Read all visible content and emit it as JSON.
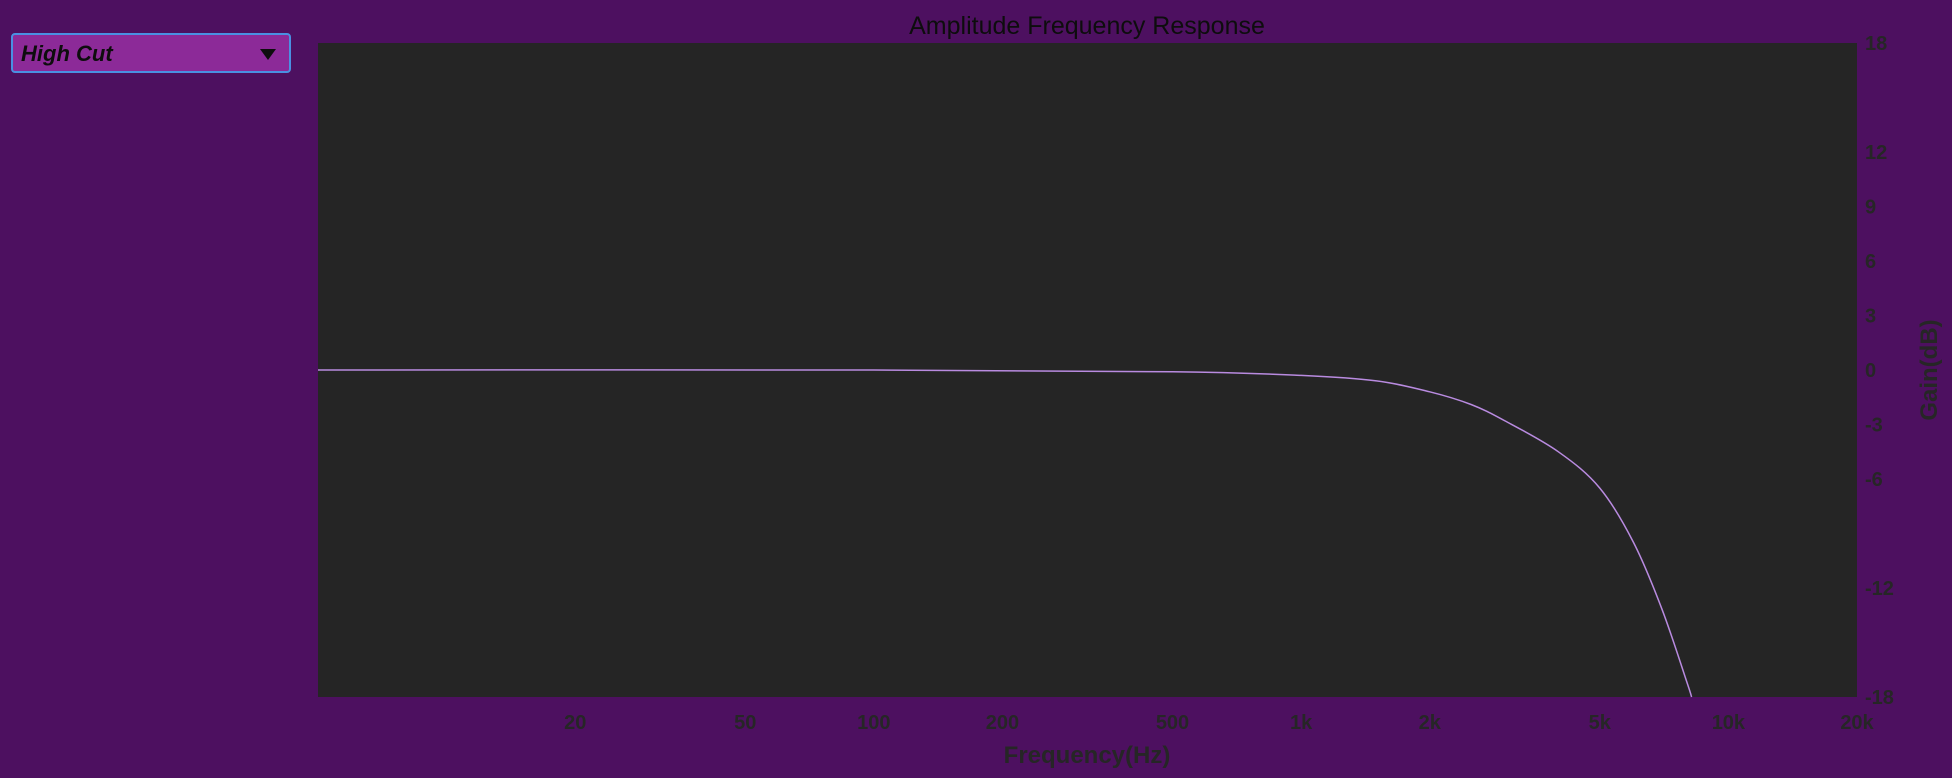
{
  "filter_type_select": {
    "selected_label": "High Cut"
  },
  "colors": {
    "page_background": "#4d1060",
    "plot_background": "#252525",
    "curve": "#b98be0",
    "dropdown_fill": "#8c2a98",
    "dropdown_border": "#4a90e2"
  },
  "chart_data": {
    "type": "line",
    "title": "Amplitude Frequency Response",
    "xlabel": "Frequency(Hz)",
    "ylabel": "Gain(dB)",
    "x_scale": "log",
    "xlim": [
      5,
      20000
    ],
    "ylim": [
      -18,
      18
    ],
    "x_ticks": [
      {
        "value": 20,
        "label": "20"
      },
      {
        "value": 50,
        "label": "50"
      },
      {
        "value": 100,
        "label": "100"
      },
      {
        "value": 200,
        "label": "200"
      },
      {
        "value": 500,
        "label": "500"
      },
      {
        "value": 1000,
        "label": "1k"
      },
      {
        "value": 2000,
        "label": "2k"
      },
      {
        "value": 5000,
        "label": "5k"
      },
      {
        "value": 10000,
        "label": "10k"
      },
      {
        "value": 20000,
        "label": "20k"
      }
    ],
    "y_ticks": [
      {
        "value": 18,
        "label": "18"
      },
      {
        "value": 12,
        "label": "12"
      },
      {
        "value": 9,
        "label": "9"
      },
      {
        "value": 6,
        "label": "6"
      },
      {
        "value": 3,
        "label": "3"
      },
      {
        "value": 0,
        "label": "0"
      },
      {
        "value": -3,
        "label": "-3"
      },
      {
        "value": -6,
        "label": "-6"
      },
      {
        "value": -12,
        "label": "-12"
      },
      {
        "value": -18,
        "label": "-18"
      }
    ],
    "grid": false,
    "series": [
      {
        "points": [
          {
            "x": 5,
            "y": 0
          },
          {
            "x": 100,
            "y": 0
          },
          {
            "x": 500,
            "y": -0.1
          },
          {
            "x": 1000,
            "y": -0.3
          },
          {
            "x": 1500,
            "y": -0.6
          },
          {
            "x": 2000,
            "y": -1.2
          },
          {
            "x": 2500,
            "y": -1.9
          },
          {
            "x": 3000,
            "y": -2.8
          },
          {
            "x": 4000,
            "y": -4.5
          },
          {
            "x": 5000,
            "y": -6.5
          },
          {
            "x": 6000,
            "y": -9.5
          },
          {
            "x": 7000,
            "y": -13.2
          },
          {
            "x": 8000,
            "y": -17.2
          },
          {
            "x": 8200,
            "y": -18
          }
        ]
      }
    ]
  }
}
